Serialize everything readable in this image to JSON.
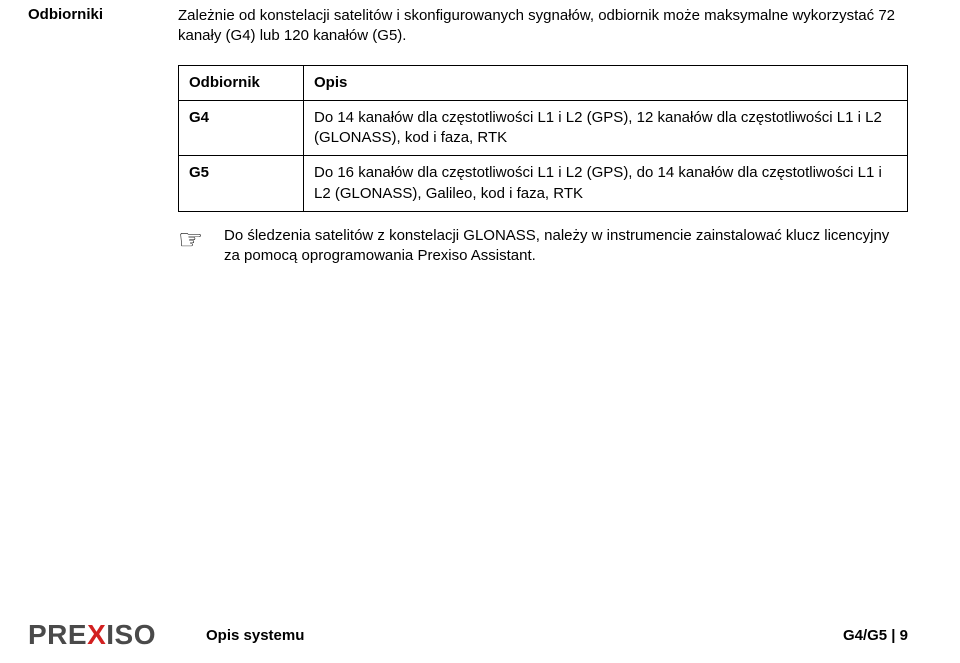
{
  "header": {
    "left_label": "Odbiorniki",
    "intro": "Zależnie od konstelacji satelitów i skonfigurowanych sygnałów, odbiornik może maksymalne wykorzystać 72 kanały (G4) lub 120 kanałów (G5)."
  },
  "table": {
    "head_key": "Odbiornik",
    "head_val": "Opis",
    "rows": [
      {
        "key": "G4",
        "val": "Do 14 kanałów dla częstotliwości L1 i L2 (GPS), 12 kanałów dla częstotliwości L1 i L2 (GLONASS), kod i faza, RTK"
      },
      {
        "key": "G5",
        "val": "Do 16 kanałów dla częstotliwości L1 i L2 (GPS), do 14 kanałów dla częstotliwości L1 i L2 (GLONASS), Galileo, kod i faza, RTK"
      }
    ]
  },
  "note": {
    "icon": "☞",
    "text": "Do śledzenia satelitów z konstelacji GLONASS, należy w instrumencie zainstalować klucz licencyjny za pomocą oprogramowania Prexiso Assistant."
  },
  "footer": {
    "logo_pre": "PRE",
    "logo_x": "X",
    "logo_post": "ISO",
    "middle": "Opis systemu",
    "right": "G4/G5 | 9"
  },
  "style": {
    "font_size_body": 15,
    "logo_gray": "#4a4a4a",
    "logo_red": "#d22020",
    "background": "#ffffff"
  }
}
